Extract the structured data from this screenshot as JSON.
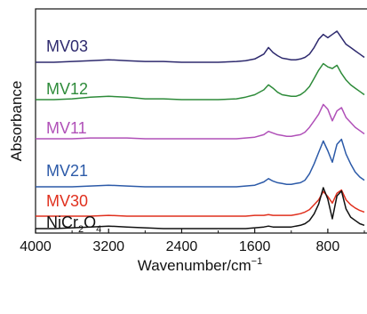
{
  "chart_data": {
    "type": "line",
    "xlabel": "Wavenumber/cm",
    "xlabel_superscript": "−1",
    "ylabel": "Absorbance",
    "xlim": [
      4000,
      400
    ],
    "x_reversed": true,
    "x_ticks": [
      {
        "value": 4000,
        "label": "4000"
      },
      {
        "value": 3200,
        "label": "3200"
      },
      {
        "value": 2400,
        "label": "2400"
      },
      {
        "value": 1600,
        "label": "1600"
      },
      {
        "value": 800,
        "label": "800"
      }
    ],
    "y_ticks": false,
    "grid": false,
    "series": [
      {
        "name": "MV03",
        "label_main": "MV03",
        "label_sub": "",
        "label_tail": "",
        "color": "#2e2a6e",
        "x": [
          4000,
          3800,
          3600,
          3400,
          3200,
          3000,
          2800,
          2600,
          2400,
          2200,
          2000,
          1800,
          1700,
          1600,
          1500,
          1450,
          1400,
          1350,
          1300,
          1250,
          1200,
          1150,
          1100,
          1050,
          1000,
          950,
          900,
          850,
          800,
          750,
          700,
          650,
          600,
          550,
          500,
          450,
          400
        ],
        "y": [
          0.0,
          0.0,
          0.01,
          0.02,
          0.03,
          0.02,
          0.01,
          0.01,
          0.0,
          0.0,
          0.0,
          0.01,
          0.02,
          0.04,
          0.1,
          0.18,
          0.12,
          0.08,
          0.05,
          0.04,
          0.03,
          0.03,
          0.04,
          0.06,
          0.1,
          0.18,
          0.28,
          0.34,
          0.3,
          0.34,
          0.38,
          0.3,
          0.22,
          0.18,
          0.14,
          0.1,
          0.06
        ]
      },
      {
        "name": "MV12",
        "label_main": "MV12",
        "label_sub": "",
        "label_tail": "",
        "color": "#2e8b3a",
        "x": [
          4000,
          3800,
          3600,
          3400,
          3200,
          3000,
          2800,
          2600,
          2400,
          2200,
          2000,
          1800,
          1700,
          1600,
          1500,
          1450,
          1400,
          1350,
          1300,
          1250,
          1200,
          1150,
          1100,
          1050,
          1000,
          950,
          900,
          850,
          800,
          750,
          700,
          650,
          600,
          550,
          500,
          450,
          400
        ],
        "y": [
          0.0,
          0.0,
          0.01,
          0.03,
          0.04,
          0.03,
          0.01,
          0.01,
          0.0,
          0.0,
          0.0,
          0.01,
          0.03,
          0.06,
          0.12,
          0.18,
          0.14,
          0.09,
          0.06,
          0.05,
          0.04,
          0.04,
          0.06,
          0.1,
          0.16,
          0.26,
          0.36,
          0.44,
          0.4,
          0.38,
          0.42,
          0.32,
          0.24,
          0.18,
          0.14,
          0.1,
          0.06
        ]
      },
      {
        "name": "MV11",
        "label_main": "MV11",
        "label_sub": "",
        "label_tail": "",
        "color": "#b050b8",
        "x": [
          4000,
          3800,
          3600,
          3400,
          3200,
          3000,
          2800,
          2600,
          2400,
          2200,
          2000,
          1800,
          1700,
          1600,
          1500,
          1450,
          1400,
          1350,
          1300,
          1250,
          1200,
          1150,
          1100,
          1050,
          1000,
          950,
          900,
          850,
          800,
          750,
          700,
          650,
          600,
          550,
          500,
          450,
          400
        ],
        "y": [
          0.0,
          0.0,
          0.0,
          0.01,
          0.01,
          0.01,
          0.0,
          0.0,
          0.0,
          0.0,
          0.0,
          0.0,
          0.01,
          0.02,
          0.05,
          0.09,
          0.07,
          0.05,
          0.04,
          0.03,
          0.03,
          0.04,
          0.05,
          0.08,
          0.14,
          0.22,
          0.3,
          0.42,
          0.36,
          0.22,
          0.34,
          0.38,
          0.26,
          0.2,
          0.14,
          0.1,
          0.06
        ]
      },
      {
        "name": "MV21",
        "label_main": "MV21",
        "label_sub": "",
        "label_tail": "",
        "color": "#2c5aa8",
        "x": [
          4000,
          3800,
          3600,
          3400,
          3200,
          3000,
          2800,
          2600,
          2400,
          2200,
          2000,
          1800,
          1700,
          1600,
          1500,
          1450,
          1400,
          1350,
          1300,
          1250,
          1200,
          1150,
          1100,
          1050,
          1000,
          950,
          900,
          850,
          800,
          750,
          700,
          650,
          600,
          550,
          500,
          450,
          400
        ],
        "y": [
          0.0,
          0.0,
          0.0,
          0.01,
          0.02,
          0.01,
          0.0,
          0.0,
          0.0,
          0.0,
          0.0,
          0.0,
          0.01,
          0.02,
          0.06,
          0.1,
          0.07,
          0.05,
          0.04,
          0.03,
          0.03,
          0.04,
          0.05,
          0.08,
          0.16,
          0.28,
          0.42,
          0.56,
          0.44,
          0.3,
          0.52,
          0.58,
          0.4,
          0.28,
          0.18,
          0.12,
          0.08
        ]
      },
      {
        "name": "MV30",
        "label_main": "MV30",
        "label_sub": "",
        "label_tail": "",
        "color": "#e0301e",
        "x": [
          4000,
          3800,
          3600,
          3400,
          3200,
          3000,
          2800,
          2600,
          2400,
          2200,
          2000,
          1800,
          1700,
          1600,
          1500,
          1450,
          1400,
          1350,
          1300,
          1250,
          1200,
          1150,
          1100,
          1050,
          1000,
          950,
          900,
          850,
          800,
          750,
          700,
          650,
          600,
          550,
          500,
          450,
          400
        ],
        "y": [
          0.0,
          0.0,
          0.0,
          0.0,
          0.01,
          0.0,
          0.0,
          0.0,
          0.0,
          0.0,
          0.0,
          0.0,
          0.0,
          0.01,
          0.01,
          0.02,
          0.01,
          0.01,
          0.01,
          0.01,
          0.01,
          0.02,
          0.03,
          0.05,
          0.08,
          0.14,
          0.2,
          0.3,
          0.24,
          0.16,
          0.28,
          0.32,
          0.2,
          0.14,
          0.1,
          0.07,
          0.05
        ]
      },
      {
        "name": "NiCr2O4",
        "label_main": "NiCr",
        "label_sub": "2",
        "label_tail": "O",
        "label_sub2": "4",
        "color": "#111111",
        "x": [
          4000,
          3800,
          3600,
          3400,
          3200,
          3000,
          2800,
          2600,
          2400,
          2200,
          2000,
          1800,
          1700,
          1600,
          1500,
          1450,
          1400,
          1350,
          1300,
          1250,
          1200,
          1150,
          1100,
          1050,
          1000,
          950,
          900,
          850,
          800,
          750,
          700,
          650,
          600,
          550,
          500,
          450,
          400
        ],
        "y": [
          0.0,
          0.0,
          0.01,
          0.02,
          0.03,
          0.02,
          0.01,
          0.0,
          0.0,
          0.0,
          0.0,
          0.0,
          0.0,
          0.01,
          0.02,
          0.03,
          0.02,
          0.02,
          0.02,
          0.02,
          0.02,
          0.03,
          0.04,
          0.06,
          0.1,
          0.18,
          0.3,
          0.5,
          0.36,
          0.12,
          0.4,
          0.46,
          0.24,
          0.14,
          0.1,
          0.06,
          0.04
        ]
      }
    ]
  }
}
